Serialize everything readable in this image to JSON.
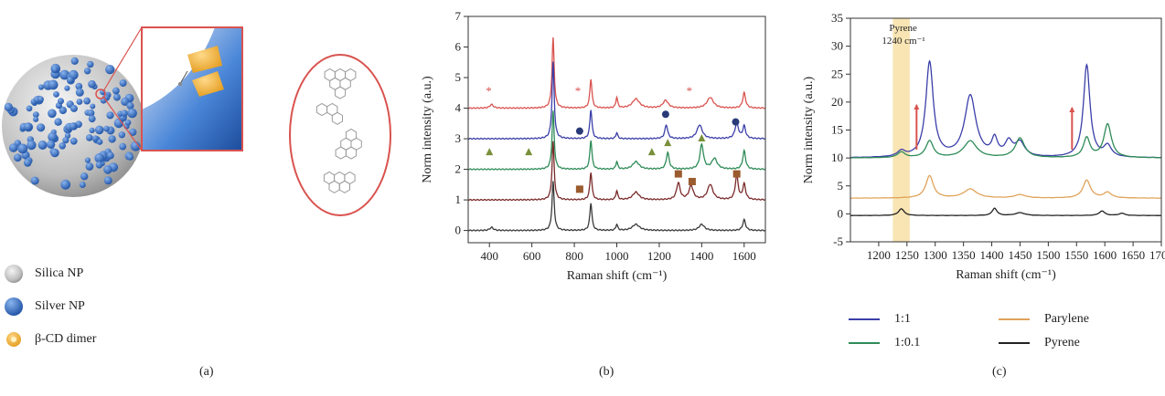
{
  "panel_a": {
    "legend": [
      {
        "label": "Silica NP",
        "color": "#c7c7c7"
      },
      {
        "label": "Silver NP",
        "color": "#3f7fd0"
      },
      {
        "label": "β-CD dimer",
        "color": "#f2b43a"
      }
    ],
    "caption": "(a)"
  },
  "panel_b_caption": "(b)",
  "panel_c_caption": "(c)",
  "panel_c_legend": [
    {
      "label": "1:1",
      "color": "#3b3fa8"
    },
    {
      "label": "Parylene",
      "color": "#e0a35a"
    },
    {
      "label": "1:0.1",
      "color": "#2e8b57"
    },
    {
      "label": "Pyrene",
      "color": "#222222"
    }
  ],
  "chart_data": [
    {
      "type": "line",
      "xlabel": "Raman shift (cm⁻¹)",
      "ylabel": "Norm intensity (a.u.)",
      "xlim": [
        300,
        1700
      ],
      "ylim": [
        -0.4,
        7
      ],
      "xticks": [
        400,
        600,
        800,
        1000,
        1200,
        1400,
        1600
      ],
      "yticks": [
        0,
        1,
        2,
        3,
        4,
        5,
        6,
        7
      ],
      "series": [
        {
          "color": "#d9534f",
          "baseline": 4,
          "peaks": [
            [
              700,
              2.3,
              6
            ],
            [
              878,
              0.95,
              6
            ],
            [
              1000,
              0.35,
              5
            ],
            [
              1090,
              0.3,
              20
            ],
            [
              1230,
              0.25,
              15
            ],
            [
              1440,
              0.35,
              18
            ],
            [
              1600,
              0.5,
              8
            ],
            [
              410,
              0.12,
              10
            ]
          ],
          "markers": [
            [
              400,
              4.55
            ],
            [
              820,
              4.55
            ],
            [
              1345,
              4.55
            ]
          ],
          "marker": "star"
        },
        {
          "color": "#3b3fa8",
          "baseline": 3,
          "peaks": [
            [
              700,
              2.5,
              6
            ],
            [
              878,
              0.95,
              6
            ],
            [
              1000,
              0.2,
              5
            ],
            [
              1233,
              0.45,
              8
            ],
            [
              1390,
              0.45,
              15
            ],
            [
              1565,
              0.5,
              10
            ],
            [
              1600,
              0.4,
              8
            ]
          ],
          "markers": [
            [
              825,
              3.25
            ],
            [
              1230,
              3.8
            ],
            [
              1560,
              3.55
            ]
          ],
          "marker": "circle"
        },
        {
          "color": "#2e8b57",
          "baseline": 2,
          "peaks": [
            [
              700,
              1.9,
              6
            ],
            [
              878,
              0.95,
              6
            ],
            [
              1000,
              0.25,
              5
            ],
            [
              1090,
              0.25,
              18
            ],
            [
              1240,
              0.55,
              8
            ],
            [
              1400,
              0.8,
              10
            ],
            [
              1460,
              0.35,
              15
            ],
            [
              1600,
              0.6,
              8
            ]
          ],
          "markers": [
            [
              400,
              2.55
            ],
            [
              585,
              2.55
            ],
            [
              1165,
              2.55
            ],
            [
              1240,
              2.85
            ],
            [
              1400,
              3.0
            ]
          ],
          "marker": "triangle"
        },
        {
          "color": "#7a2a2a",
          "baseline": 1,
          "peaks": [
            [
              700,
              1.9,
              6
            ],
            [
              878,
              0.9,
              6
            ],
            [
              1000,
              0.3,
              5
            ],
            [
              1090,
              0.25,
              18
            ],
            [
              1290,
              0.55,
              10
            ],
            [
              1350,
              0.45,
              12
            ],
            [
              1440,
              0.5,
              15
            ],
            [
              1565,
              0.8,
              8
            ],
            [
              1600,
              0.5,
              8
            ]
          ],
          "markers": [
            [
              825,
              1.35
            ],
            [
              1290,
              1.85
            ],
            [
              1355,
              1.6
            ],
            [
              1565,
              1.85
            ]
          ],
          "marker": "square"
        },
        {
          "color": "#3a3a3a",
          "baseline": 0,
          "peaks": [
            [
              700,
              1.6,
              6
            ],
            [
              878,
              0.9,
              6
            ],
            [
              1000,
              0.2,
              5
            ],
            [
              1090,
              0.2,
              20
            ],
            [
              1400,
              0.2,
              15
            ],
            [
              1600,
              0.35,
              8
            ],
            [
              410,
              0.1,
              10
            ]
          ],
          "markers": [],
          "marker": "none"
        }
      ]
    },
    {
      "type": "line",
      "xlabel": "Raman shift (cm⁻¹)",
      "ylabel": "Norm intensity (a.u.)",
      "xlim": [
        1150,
        1700
      ],
      "ylim": [
        -5,
        35
      ],
      "xticks": [
        1200,
        1250,
        1300,
        1350,
        1400,
        1450,
        1500,
        1550,
        1600,
        1650,
        1700
      ],
      "yticks": [
        -5,
        0,
        5,
        10,
        15,
        20,
        25,
        30,
        35
      ],
      "highlight": {
        "x0": 1225,
        "x1": 1255,
        "label_line1": "Pyrene",
        "label_line2": "1240 cm⁻¹"
      },
      "arrows": [
        [
          1267,
          11.5,
          19.5
        ],
        [
          1542,
          11.5,
          19.0
        ]
      ],
      "series": [
        {
          "name": "1:1",
          "color": "#3b3fa8",
          "baseline": 10,
          "peaks": [
            [
              1240,
              1.0,
              8
            ],
            [
              1290,
              17,
              8
            ],
            [
              1362,
              11,
              12
            ],
            [
              1405,
              3,
              6
            ],
            [
              1430,
              2.5,
              8
            ],
            [
              1450,
              2.5,
              10
            ],
            [
              1568,
              16.5,
              7
            ],
            [
              1605,
              2,
              8
            ]
          ]
        },
        {
          "name": "1:0.1",
          "color": "#2e8b57",
          "baseline": 10,
          "peaks": [
            [
              1240,
              1.0,
              8
            ],
            [
              1290,
              3,
              8
            ],
            [
              1362,
              3,
              14
            ],
            [
              1450,
              3.5,
              10
            ],
            [
              1568,
              3.5,
              7
            ],
            [
              1605,
              6,
              8
            ]
          ]
        },
        {
          "name": "Parylene",
          "color": "#e0a35a",
          "baseline": 2.8,
          "peaks": [
            [
              1290,
              4,
              8
            ],
            [
              1362,
              1.6,
              14
            ],
            [
              1450,
              0.6,
              12
            ],
            [
              1568,
              3.2,
              8
            ],
            [
              1605,
              1.0,
              8
            ]
          ]
        },
        {
          "name": "Pyrene",
          "color": "#222222",
          "baseline": -0.3,
          "peaks": [
            [
              1240,
              1.2,
              6
            ],
            [
              1405,
              1.3,
              5
            ],
            [
              1450,
              0.5,
              10
            ],
            [
              1595,
              0.8,
              6
            ],
            [
              1630,
              0.4,
              6
            ]
          ]
        }
      ]
    }
  ]
}
